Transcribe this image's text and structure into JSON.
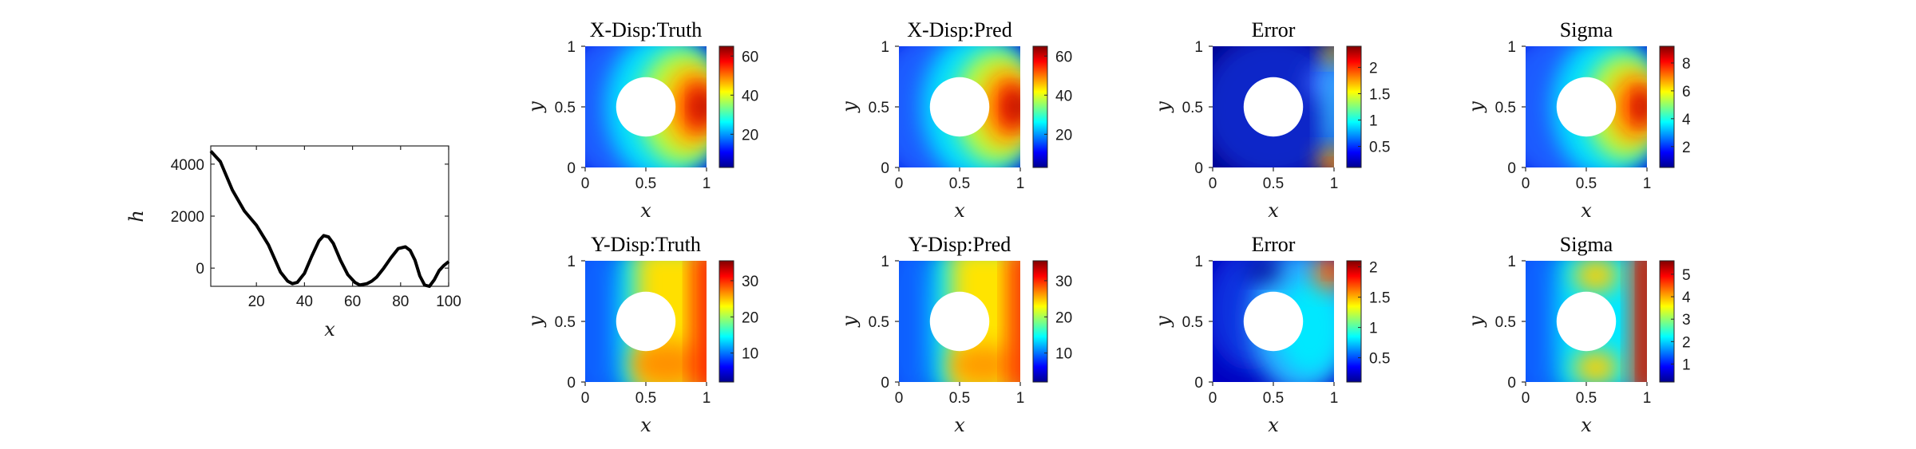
{
  "chart_data": [
    {
      "type": "line",
      "title": "",
      "xlabel": "x",
      "ylabel": "h",
      "xlim": [
        1,
        100
      ],
      "ylim": [
        -700,
        4700
      ],
      "xticks": [
        "20",
        "40",
        "60",
        "80",
        "100"
      ],
      "yticks": [
        "0",
        "2000",
        "4000"
      ],
      "series": [
        {
          "color": "#000000",
          "x": [
            1,
            5,
            10,
            15,
            20,
            25,
            30,
            33,
            35,
            37,
            40,
            43,
            46,
            48,
            50,
            52,
            55,
            58,
            61,
            63,
            66,
            68,
            70,
            73,
            76,
            79,
            82,
            84,
            86,
            88,
            90,
            92,
            94,
            96,
            98,
            100
          ],
          "y": [
            4500,
            4100,
            3000,
            2200,
            1650,
            900,
            -150,
            -500,
            -600,
            -550,
            -200,
            450,
            1050,
            1250,
            1200,
            950,
            300,
            -250,
            -550,
            -650,
            -600,
            -500,
            -350,
            0,
            400,
            750,
            820,
            680,
            300,
            -300,
            -650,
            -700,
            -450,
            -100,
            100,
            250
          ]
        }
      ]
    },
    {
      "type": "heatmap",
      "title": "X-Disp:Truth",
      "xlabel": "x",
      "ylabel": "y",
      "xticks": [
        "0",
        "0.5",
        "1"
      ],
      "yticks": [
        "0",
        "0.5",
        "1"
      ],
      "colorbar_ticks": [
        "20",
        "40",
        "60"
      ],
      "colorbar_range": [
        3,
        65
      ]
    },
    {
      "type": "heatmap",
      "title": "X-Disp:Pred",
      "xlabel": "x",
      "ylabel": "y",
      "xticks": [
        "0",
        "0.5",
        "1"
      ],
      "yticks": [
        "0",
        "0.5",
        "1"
      ],
      "colorbar_ticks": [
        "20",
        "40",
        "60"
      ],
      "colorbar_range": [
        3,
        65
      ]
    },
    {
      "type": "heatmap",
      "title": "Error",
      "xlabel": "x",
      "ylabel": "y",
      "xticks": [
        "0",
        "0.5",
        "1"
      ],
      "yticks": [
        "0",
        "0.5",
        "1"
      ],
      "colorbar_ticks": [
        "0.5",
        "1",
        "1.5",
        "2"
      ],
      "colorbar_range": [
        0.1,
        2.4
      ]
    },
    {
      "type": "heatmap",
      "title": "Sigma",
      "xlabel": "x",
      "ylabel": "y",
      "xticks": [
        "0",
        "0.5",
        "1"
      ],
      "yticks": [
        "0",
        "0.5",
        "1"
      ],
      "colorbar_ticks": [
        "2",
        "4",
        "6",
        "8"
      ],
      "colorbar_range": [
        0.5,
        9.2
      ]
    },
    {
      "type": "heatmap",
      "title": "Y-Disp:Truth",
      "xlabel": "x",
      "ylabel": "y",
      "xticks": [
        "0",
        "0.5",
        "1"
      ],
      "yticks": [
        "0",
        "0.5",
        "1"
      ],
      "colorbar_ticks": [
        "10",
        "20",
        "30"
      ],
      "colorbar_range": [
        2,
        35.5
      ]
    },
    {
      "type": "heatmap",
      "title": "Y-Disp:Pred",
      "xlabel": "x",
      "ylabel": "y",
      "xticks": [
        "0",
        "0.5",
        "1"
      ],
      "yticks": [
        "0",
        "0.5",
        "1"
      ],
      "colorbar_ticks": [
        "10",
        "20",
        "30"
      ],
      "colorbar_range": [
        2,
        35.5
      ]
    },
    {
      "type": "heatmap",
      "title": "Error",
      "xlabel": "x",
      "ylabel": "y",
      "xticks": [
        "0",
        "0.5",
        "1"
      ],
      "yticks": [
        "0",
        "0.5",
        "1"
      ],
      "colorbar_ticks": [
        "0.5",
        "1",
        "1.5",
        "2"
      ],
      "colorbar_range": [
        0.1,
        2.1
      ]
    },
    {
      "type": "heatmap",
      "title": "Sigma",
      "xlabel": "x",
      "ylabel": "y",
      "xticks": [
        "0",
        "0.5",
        "1"
      ],
      "yticks": [
        "0",
        "0.5",
        "1"
      ],
      "colorbar_ticks": [
        "1",
        "2",
        "3",
        "4",
        "5"
      ],
      "colorbar_range": [
        0.2,
        5.6
      ]
    }
  ]
}
